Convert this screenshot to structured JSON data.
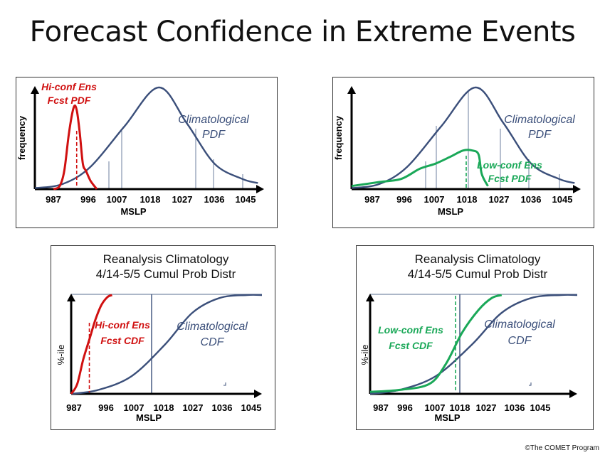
{
  "title": "Forecast Confidence in Extreme Events",
  "credit": "©The COMET Program",
  "colors": {
    "climo": "#3b4f7a",
    "hi_conf": "#d01010",
    "low_conf": "#1aa858",
    "axis": "#000000"
  },
  "chart_data": [
    {
      "id": "tl",
      "type": "line",
      "kind": "pdf",
      "xlabel": "MSLP",
      "ylabel": "frequency",
      "ticks": [
        "987",
        "996",
        "1007",
        "1018",
        "1027",
        "1036",
        "1045"
      ],
      "climo_label": [
        "Climatological",
        "PDF"
      ],
      "series": [
        {
          "name": "Climatological PDF",
          "role": "climo",
          "x": [
            978,
            987,
            996,
            1007,
            1018,
            1027,
            1036,
            1045,
            1050
          ],
          "y": [
            0.01,
            0.05,
            0.22,
            0.62,
            1.0,
            0.65,
            0.25,
            0.1,
            0.06
          ]
        },
        {
          "name": "Hi-conf Ens Fcst PDF",
          "role": "hi_conf",
          "label": [
            "Hi-conf Ens",
            "Fcst PDF"
          ],
          "x": [
            984,
            986,
            987.5,
            989,
            990.5,
            991.5,
            992.5,
            993.5,
            994.5,
            996,
            998
          ],
          "y": [
            0.0,
            0.03,
            0.18,
            0.55,
            0.8,
            0.78,
            0.55,
            0.25,
            0.18,
            0.08,
            0.0
          ]
        }
      ],
      "marker_x": 991.5
    },
    {
      "id": "tr",
      "type": "line",
      "kind": "pdf",
      "xlabel": "MSLP",
      "ylabel": "frequency",
      "ticks": [
        "987",
        "996",
        "1007",
        "1018",
        "1027",
        "1036",
        "1045"
      ],
      "climo_label": [
        "Climatological",
        "PDF"
      ],
      "series": [
        {
          "name": "Climatological PDF",
          "role": "climo",
          "x": [
            978,
            987,
            996,
            1007,
            1018,
            1027,
            1036,
            1045,
            1050
          ],
          "y": [
            0.01,
            0.05,
            0.22,
            0.62,
            1.0,
            0.65,
            0.25,
            0.1,
            0.06
          ]
        },
        {
          "name": "Low-conf Ens Fcst PDF",
          "role": "low_conf",
          "label": [
            "Low-conf Ens",
            "Fcst PDF"
          ],
          "x": [
            978,
            987,
            994,
            1000,
            1005,
            1010,
            1014,
            1017,
            1019,
            1020,
            1022
          ],
          "y": [
            0.03,
            0.07,
            0.1,
            0.2,
            0.25,
            0.32,
            0.38,
            0.38,
            0.34,
            0.15,
            0.03
          ]
        }
      ],
      "marker_x": 1015
    },
    {
      "id": "bl",
      "type": "line",
      "kind": "cdf",
      "heading": [
        "Reanalysis Climatology",
        "4/14-5/5 Cumul Prob Distr"
      ],
      "xlabel": "MSLP",
      "ylabel": "%-ile",
      "ticks": [
        "987",
        "996",
        "1007",
        "1018",
        "1027",
        "1036",
        "1045"
      ],
      "climo_label": [
        "Climatological",
        "CDF"
      ],
      "series": [
        {
          "name": "Climatological CDF",
          "role": "climo",
          "x": [
            987,
            996,
            1007,
            1018,
            1027,
            1036,
            1045,
            1050
          ],
          "y": [
            0.0,
            0.04,
            0.18,
            0.5,
            0.82,
            0.97,
            1.0,
            1.0
          ]
        },
        {
          "name": "Hi-conf Ens Fcst CDF",
          "role": "hi_conf",
          "label": [
            "Hi-conf Ens",
            "Fcst CDF"
          ],
          "x": [
            987,
            989,
            991,
            993,
            995,
            997,
            999,
            1000.5
          ],
          "y": [
            0.0,
            0.1,
            0.35,
            0.55,
            0.75,
            0.9,
            0.98,
            1.0
          ]
        }
      ],
      "marker_x": 993
    },
    {
      "id": "br",
      "type": "line",
      "kind": "cdf",
      "heading": [
        "Reanalysis Climatology",
        "4/14-5/5 Cumul Prob Distr"
      ],
      "xlabel": "MSLP",
      "ylabel": "%-ile",
      "ticks": [
        "987",
        "996",
        "1007",
        "1018",
        "1027",
        "1036",
        "1045"
      ],
      "climo_label": [
        "Climatological",
        "CDF"
      ],
      "series": [
        {
          "name": "Climatological CDF",
          "role": "climo",
          "x": [
            987,
            996,
            1007,
            1018,
            1027,
            1036,
            1045,
            1050
          ],
          "y": [
            0.0,
            0.04,
            0.18,
            0.5,
            0.82,
            0.97,
            1.0,
            1.0
          ]
        },
        {
          "name": "Low-conf Ens Fcst CDF",
          "role": "low_conf",
          "label": [
            "Low-conf Ens",
            "Fcst CDF"
          ],
          "x": [
            987,
            996,
            1005,
            1010,
            1015,
            1020,
            1024,
            1027
          ],
          "y": [
            0.02,
            0.04,
            0.1,
            0.3,
            0.62,
            0.85,
            0.97,
            1.0
          ]
        }
      ],
      "marker_x": 1013
    }
  ]
}
